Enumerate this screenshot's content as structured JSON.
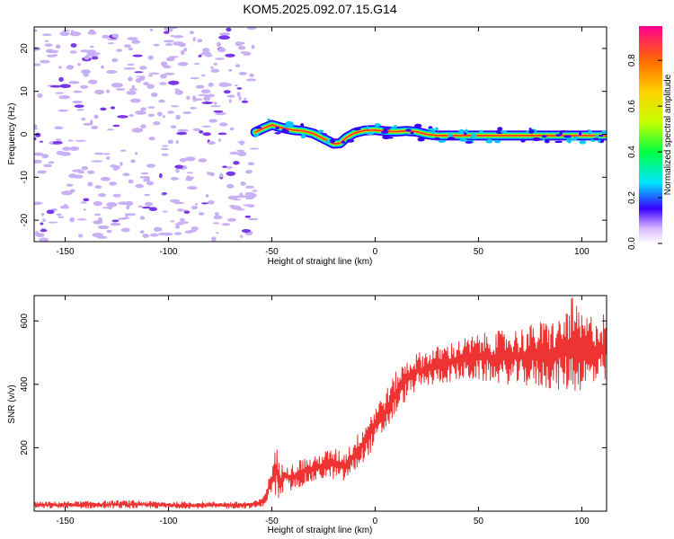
{
  "title": "KOM5.2025.092.07.15.G14",
  "colors": {
    "snr_line": "#ee3333",
    "speckle": "#c9b0f4",
    "speckle_dark": "#7a38e6",
    "axis": "#000000"
  },
  "chart_data": [
    {
      "type": "heatmap",
      "name": "spectrogram",
      "xlabel": "Height of straight line (km)",
      "ylabel": "Frequency (Hz)",
      "xlim": [
        -165,
        112
      ],
      "ylim": [
        -25,
        25
      ],
      "xticks": [
        -150,
        -100,
        -50,
        0,
        50,
        100
      ],
      "yticks": [
        -20,
        -10,
        0,
        10,
        20
      ],
      "noise_region": [
        -165,
        -58
      ],
      "trace": {
        "x": [
          -58,
          -54,
          -50,
          -45,
          -40,
          -35,
          -30,
          -25,
          -20,
          -17,
          -14,
          -10,
          -5,
          0,
          5,
          10,
          15,
          20,
          25,
          30,
          40,
          50,
          60,
          70,
          80,
          90,
          100,
          112
        ],
        "freq": [
          0.5,
          1.4,
          2.2,
          1.5,
          1.0,
          0.8,
          0.2,
          -1.0,
          -2.2,
          -2.1,
          -0.8,
          0.3,
          0.9,
          1.0,
          0.7,
          0.6,
          0.8,
          0.6,
          0.0,
          -0.3,
          -0.3,
          -0.3,
          -0.3,
          -0.3,
          -0.3,
          -0.3,
          -0.3,
          -0.3
        ]
      },
      "colorbar": {
        "label": "Normalized spectral amplitude",
        "range": [
          0,
          0.95
        ],
        "ticks": [
          "0.0",
          "0.2",
          "0.4",
          "0.6",
          "0.8"
        ]
      }
    },
    {
      "type": "line",
      "name": "snr",
      "xlabel": "Height of straight line (km)",
      "ylabel": "SNR (v/v)",
      "xlim": [
        -165,
        112
      ],
      "ylim": [
        0,
        680
      ],
      "xticks": [
        -150,
        -100,
        -50,
        0,
        50,
        100
      ],
      "yticks": [
        200,
        400,
        600
      ],
      "envelope": {
        "x": [
          -165,
          -140,
          -120,
          -100,
          -80,
          -60,
          -55,
          -52,
          -50,
          -48,
          -46,
          -44,
          -40,
          -35,
          -30,
          -25,
          -20,
          -15,
          -10,
          -5,
          0,
          5,
          10,
          15,
          20,
          30,
          40,
          50,
          60,
          70,
          80,
          90,
          95,
          100,
          112
        ],
        "low": [
          8,
          8,
          8,
          8,
          8,
          8,
          10,
          30,
          60,
          40,
          30,
          60,
          60,
          80,
          90,
          100,
          100,
          90,
          120,
          160,
          200,
          250,
          300,
          350,
          380,
          400,
          410,
          410,
          400,
          395,
          385,
          380,
          370,
          380,
          390
        ],
        "high": [
          30,
          32,
          35,
          30,
          30,
          30,
          40,
          90,
          140,
          230,
          130,
          170,
          150,
          170,
          170,
          190,
          200,
          190,
          230,
          280,
          340,
          380,
          440,
          480,
          500,
          520,
          540,
          560,
          570,
          580,
          600,
          610,
          680,
          620,
          630
        ]
      }
    }
  ]
}
